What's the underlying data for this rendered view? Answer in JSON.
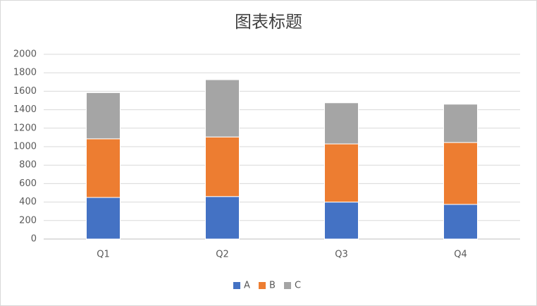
{
  "chart_data": {
    "type": "stacked-bar",
    "title": "图表标题",
    "categories": [
      "Q1",
      "Q2",
      "Q3",
      "Q4"
    ],
    "series": [
      {
        "name": "A",
        "color": "#4472c4",
        "values": [
          450,
          460,
          400,
          375
        ]
      },
      {
        "name": "B",
        "color": "#ed7d31",
        "values": [
          635,
          645,
          630,
          670
        ]
      },
      {
        "name": "C",
        "color": "#a5a5a5",
        "values": [
          500,
          620,
          445,
          415
        ]
      }
    ],
    "ylim": [
      0,
      2000
    ],
    "yticks": [
      0,
      200,
      400,
      600,
      800,
      1000,
      1200,
      1400,
      1600,
      1800,
      2000
    ],
    "grid": true,
    "legend": "bottom"
  }
}
